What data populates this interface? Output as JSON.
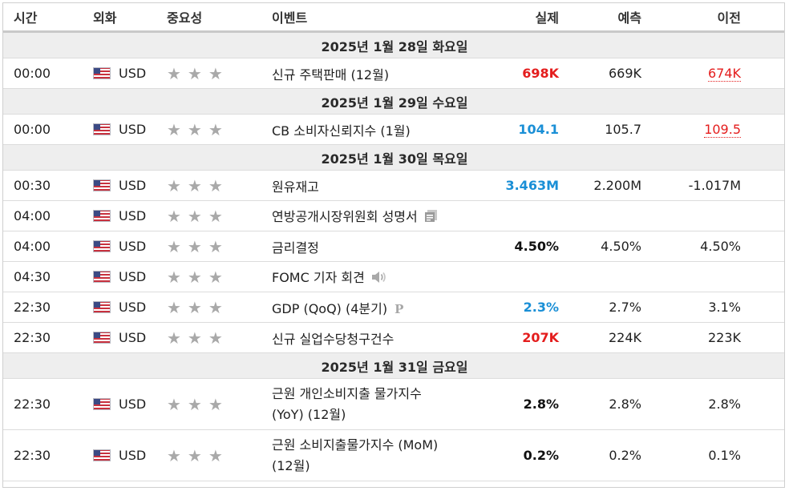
{
  "headers": {
    "time": "시간",
    "currency": "외화",
    "importance": "중요성",
    "event": "이벤트",
    "actual": "실제",
    "forecast": "예측",
    "previous": "이전"
  },
  "rows": [
    {
      "date": "2025년 1월 28일 화요일"
    },
    {
      "time": "00:00",
      "cur": "USD",
      "stars": "★★★",
      "event": "신규 주택판매 (12월)",
      "actual": "698K",
      "actual_color": "red",
      "forecast": "669K",
      "previous": "674K",
      "previous_style": "red-revised"
    },
    {
      "date": "2025년 1월 29일 수요일"
    },
    {
      "time": "00:00",
      "cur": "USD",
      "stars": "★★★",
      "event": "CB 소비자신뢰지수 (1월)",
      "actual": "104.1",
      "actual_color": "blue",
      "forecast": "105.7",
      "previous": "109.5",
      "previous_style": "red-revised"
    },
    {
      "date": "2025년 1월 30일 목요일"
    },
    {
      "time": "00:30",
      "cur": "USD",
      "stars": "★★★",
      "event": "원유재고",
      "actual": "3.463M",
      "actual_color": "blue",
      "forecast": "2.200M",
      "previous": "-1.017M"
    },
    {
      "time": "04:00",
      "cur": "USD",
      "stars": "★★★",
      "event": "연방공개시장위원회 성명서",
      "icon": "document-icon",
      "actual": "",
      "forecast": "",
      "previous": ""
    },
    {
      "time": "04:00",
      "cur": "USD",
      "stars": "★★★",
      "event": "금리결정",
      "actual": "4.50%",
      "actual_color": "black",
      "forecast": "4.50%",
      "previous": "4.50%"
    },
    {
      "time": "04:30",
      "cur": "USD",
      "stars": "★★★",
      "event": "FOMC 기자 회견",
      "icon": "speaker-icon",
      "actual": "",
      "forecast": "",
      "previous": ""
    },
    {
      "time": "22:30",
      "cur": "USD",
      "stars": "★★★",
      "event": "GDP (QoQ) (4분기)",
      "icon": "preliminary-icon",
      "icon_text": "P",
      "actual": "2.3%",
      "actual_color": "blue",
      "forecast": "2.7%",
      "previous": "3.1%"
    },
    {
      "time": "22:30",
      "cur": "USD",
      "stars": "★★★",
      "event": "신규 실업수당청구건수",
      "actual": "207K",
      "actual_color": "red",
      "forecast": "224K",
      "previous": "223K"
    },
    {
      "date": "2025년 1월 31일 금요일"
    },
    {
      "time": "22:30",
      "cur": "USD",
      "stars": "★★★",
      "event_lines": [
        "근원 개인소비지출 물가지수",
        "(YoY) (12월)"
      ],
      "actual": "2.8%",
      "actual_color": "black",
      "forecast": "2.8%",
      "previous": "2.8%"
    },
    {
      "time": "22:30",
      "cur": "USD",
      "stars": "★★★",
      "event_lines": [
        "근원 소비지출물가지수 (MoM)",
        "(12월)"
      ],
      "actual": "0.2%",
      "actual_color": "black",
      "forecast": "0.2%",
      "previous": "0.1%"
    }
  ]
}
